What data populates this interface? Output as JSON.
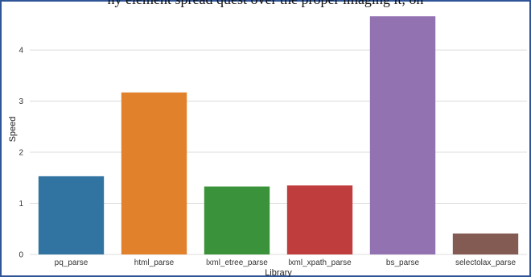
{
  "page": {
    "top_text": "ny element spread quest over the proper imaging it, on"
  },
  "chart_data": {
    "type": "bar",
    "categories": [
      "pq_parse",
      "html_parse",
      "lxml_etree_parse",
      "lxml_xpath_parse",
      "bs_parse",
      "selectolax_parse"
    ],
    "values": [
      1.53,
      3.17,
      1.33,
      1.35,
      4.66,
      0.41
    ],
    "colors": [
      "#3274a1",
      "#e1812c",
      "#3a923a",
      "#c03d3e",
      "#9372b2",
      "#845b53"
    ],
    "xlabel": "Library",
    "ylabel": "Speed",
    "ylim": [
      0,
      4.9
    ],
    "yticks": [
      0,
      1,
      2,
      3,
      4
    ],
    "grid": "horizontal"
  }
}
